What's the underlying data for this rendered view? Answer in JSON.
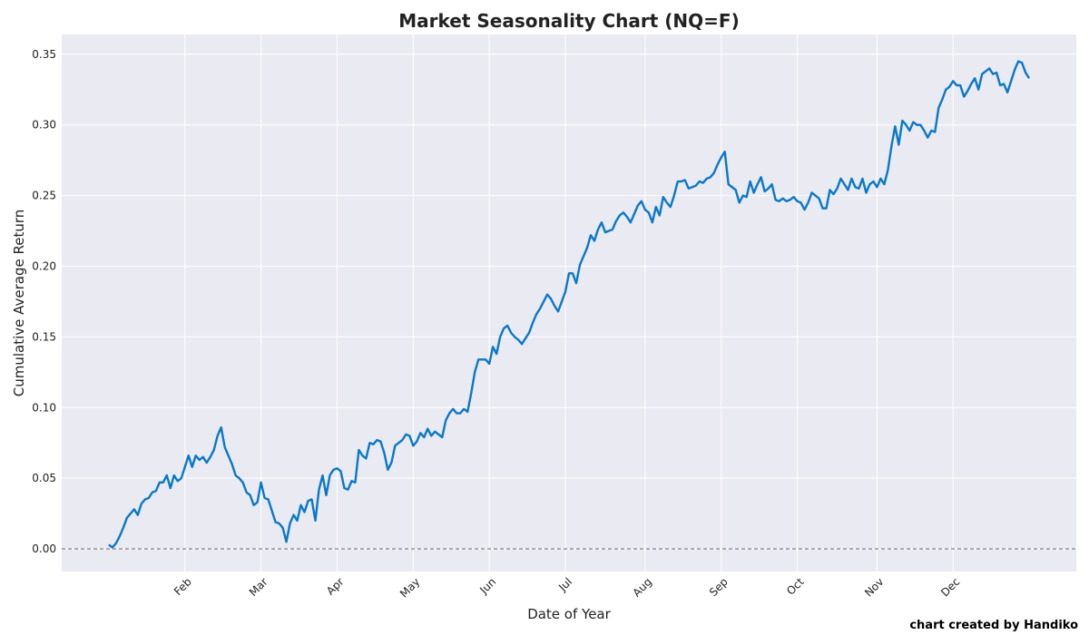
{
  "chart_data": {
    "type": "line",
    "title": "Market Seasonality Chart (NQ=F)",
    "xlabel": "Date of Year",
    "ylabel": "Cumulative Average Return",
    "credit": "chart created by Handiko",
    "color": "#0a78c8",
    "grid": true,
    "reference_line": 0,
    "xlim": [
      -13,
      267
    ],
    "ylim": [
      -0.016,
      0.364
    ],
    "xticks": [
      {
        "value": 21,
        "label": "Feb"
      },
      {
        "value": 42,
        "label": "Mar"
      },
      {
        "value": 63,
        "label": "Apr"
      },
      {
        "value": 84,
        "label": "May"
      },
      {
        "value": 105,
        "label": "Jun"
      },
      {
        "value": 126,
        "label": "Jul"
      },
      {
        "value": 148,
        "label": "Aug"
      },
      {
        "value": 169,
        "label": "Sep"
      },
      {
        "value": 190,
        "label": "Oct"
      },
      {
        "value": 212,
        "label": "Nov"
      },
      {
        "value": 233,
        "label": "Dec"
      }
    ],
    "yticks": [
      {
        "value": 0,
        "label": "0.00"
      },
      {
        "value": 0.05,
        "label": "0.05"
      },
      {
        "value": 0.1,
        "label": "0.10"
      },
      {
        "value": 0.15,
        "label": "0.15"
      },
      {
        "value": 0.2,
        "label": "0.20"
      },
      {
        "value": 0.25,
        "label": "0.25"
      },
      {
        "value": 0.3,
        "label": "0.30"
      },
      {
        "value": 0.35,
        "label": "0.35"
      }
    ],
    "x": [
      0,
      1,
      2,
      3,
      4,
      5,
      6,
      7,
      8,
      9,
      10,
      11,
      12,
      13,
      14,
      15,
      16,
      17,
      18,
      19,
      20,
      21,
      22,
      23,
      24,
      25,
      26,
      27,
      28,
      29,
      30,
      31,
      32,
      33,
      34,
      35,
      36,
      37,
      38,
      39,
      40,
      41,
      42,
      43,
      44,
      45,
      46,
      47,
      48,
      49,
      50,
      51,
      52,
      53,
      54,
      55,
      56,
      57,
      58,
      59,
      60,
      61,
      62,
      63,
      64,
      65,
      66,
      67,
      68,
      69,
      70,
      71,
      72,
      73,
      74,
      75,
      76,
      77,
      78,
      79,
      80,
      81,
      82,
      83,
      84,
      85,
      86,
      87,
      88,
      89,
      90,
      91,
      92,
      93,
      94,
      95,
      96,
      97,
      98,
      99,
      100,
      101,
      102,
      103,
      104,
      105,
      106,
      107,
      108,
      109,
      110,
      111,
      112,
      113,
      114,
      115,
      116,
      117,
      118,
      119,
      120,
      121,
      122,
      123,
      124,
      125,
      126,
      127,
      128,
      129,
      130,
      131,
      132,
      133,
      134,
      135,
      136,
      137,
      138,
      139,
      140,
      141,
      142,
      143,
      144,
      145,
      146,
      147,
      148,
      149,
      150,
      151,
      152,
      153,
      154,
      155,
      156,
      157,
      158,
      159,
      160,
      161,
      162,
      163,
      164,
      165,
      166,
      167,
      168,
      169,
      170,
      171,
      172,
      173,
      174,
      175,
      176,
      177,
      178,
      179,
      180,
      181,
      182,
      183,
      184,
      185,
      186,
      187,
      188,
      189,
      190,
      191,
      192,
      193,
      194,
      195,
      196,
      197,
      198,
      199,
      200,
      201,
      202,
      203,
      204,
      205,
      206,
      207,
      208,
      209,
      210,
      211,
      212,
      213,
      214,
      215,
      216,
      217,
      218,
      219,
      220,
      221,
      222,
      223,
      224,
      225,
      226,
      227,
      228,
      229,
      230,
      231,
      232,
      233,
      234,
      235,
      236,
      237,
      238,
      239,
      240,
      241,
      242,
      243,
      244,
      245,
      246,
      247,
      248,
      249,
      250,
      251,
      252,
      253,
      254
    ],
    "values": [
      0.003,
      0.001,
      0.004,
      0.009,
      0.015,
      0.022,
      0.025,
      0.028,
      0.024,
      0.032,
      0.035,
      0.036,
      0.04,
      0.041,
      0.047,
      0.047,
      0.052,
      0.043,
      0.052,
      0.048,
      0.05,
      0.058,
      0.066,
      0.058,
      0.066,
      0.063,
      0.065,
      0.061,
      0.065,
      0.07,
      0.08,
      0.086,
      0.072,
      0.066,
      0.06,
      0.052,
      0.05,
      0.047,
      0.04,
      0.038,
      0.031,
      0.033,
      0.047,
      0.036,
      0.035,
      0.027,
      0.019,
      0.018,
      0.015,
      0.005,
      0.018,
      0.024,
      0.02,
      0.031,
      0.026,
      0.034,
      0.035,
      0.02,
      0.042,
      0.052,
      0.038,
      0.052,
      0.056,
      0.057,
      0.055,
      0.043,
      0.042,
      0.048,
      0.047,
      0.07,
      0.066,
      0.064,
      0.075,
      0.074,
      0.077,
      0.076,
      0.068,
      0.056,
      0.061,
      0.073,
      0.075,
      0.077,
      0.081,
      0.08,
      0.073,
      0.076,
      0.082,
      0.079,
      0.085,
      0.08,
      0.083,
      0.081,
      0.079,
      0.091,
      0.096,
      0.099,
      0.096,
      0.096,
      0.099,
      0.097,
      0.11,
      0.125,
      0.134,
      0.134,
      0.134,
      0.131,
      0.143,
      0.138,
      0.15,
      0.156,
      0.158,
      0.153,
      0.15,
      0.148,
      0.145,
      0.149,
      0.153,
      0.16,
      0.166,
      0.17,
      0.175,
      0.18,
      0.177,
      0.172,
      0.168,
      0.175,
      0.182,
      0.195,
      0.195,
      0.188,
      0.201,
      0.207,
      0.213,
      0.222,
      0.218,
      0.226,
      0.231,
      0.224,
      0.225,
      0.226,
      0.232,
      0.236,
      0.238,
      0.235,
      0.231,
      0.237,
      0.243,
      0.246,
      0.24,
      0.238,
      0.231,
      0.242,
      0.236,
      0.249,
      0.245,
      0.242,
      0.25,
      0.26,
      0.26,
      0.261,
      0.255,
      0.256,
      0.257,
      0.26,
      0.259,
      0.262,
      0.263,
      0.266,
      0.272,
      0.277,
      0.281,
      0.258,
      0.256,
      0.254,
      0.245,
      0.25,
      0.249,
      0.26,
      0.252,
      0.258,
      0.263,
      0.253,
      0.255,
      0.258,
      0.247,
      0.246,
      0.248,
      0.246,
      0.247,
      0.249,
      0.246,
      0.245,
      0.24,
      0.245,
      0.252,
      0.25,
      0.248,
      0.241,
      0.241,
      0.254,
      0.251,
      0.255,
      0.262,
      0.258,
      0.254,
      0.262,
      0.256,
      0.255,
      0.262,
      0.252,
      0.258,
      0.26,
      0.256,
      0.262,
      0.258,
      0.268,
      0.285,
      0.299,
      0.286,
      0.303,
      0.3,
      0.296,
      0.302,
      0.3,
      0.3,
      0.296,
      0.291,
      0.296,
      0.295,
      0.312,
      0.318,
      0.325,
      0.327,
      0.331,
      0.328,
      0.328,
      0.32,
      0.324,
      0.329,
      0.333,
      0.325,
      0.336,
      0.338,
      0.34,
      0.336,
      0.337,
      0.328,
      0.329,
      0.323,
      0.331,
      0.339,
      0.345,
      0.344,
      0.337,
      0.333
    ]
  }
}
